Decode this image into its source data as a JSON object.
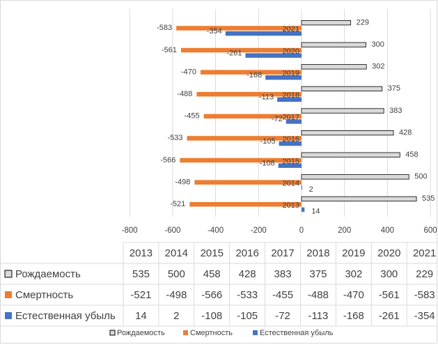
{
  "colors": {
    "birth": "#d9d9d9",
    "birth_stroke": "#000000",
    "death": "#ed7d31",
    "decline": "#4472c4",
    "grid": "#d9d9d9",
    "text": "#404040"
  },
  "chart_data": {
    "type": "bar",
    "orientation": "horizontal",
    "title": "",
    "xlabel": "",
    "ylabel": "",
    "categories": [
      "2013",
      "2014",
      "2015",
      "2016",
      "2017",
      "2018",
      "2019",
      "2020",
      "2021"
    ],
    "xlim": [
      -800,
      600
    ],
    "x_ticks": [
      "-800",
      "-600",
      "-400",
      "-200",
      "0",
      "200",
      "400",
      "600"
    ],
    "grid": true,
    "legend_position": "bottom",
    "data_table": true,
    "series": [
      {
        "name": "Рождаемость",
        "values": [
          535,
          500,
          458,
          428,
          383,
          375,
          302,
          300,
          229
        ],
        "color": "#d9d9d9"
      },
      {
        "name": "Смертность",
        "values": [
          -521,
          -498,
          -566,
          -533,
          -455,
          -488,
          -470,
          -561,
          -583
        ],
        "color": "#ed7d31"
      },
      {
        "name": "Естественная убыль",
        "values": [
          14,
          2,
          -108,
          -105,
          -72,
          -113,
          -168,
          -261,
          -354
        ],
        "color": "#4472c4"
      }
    ]
  }
}
